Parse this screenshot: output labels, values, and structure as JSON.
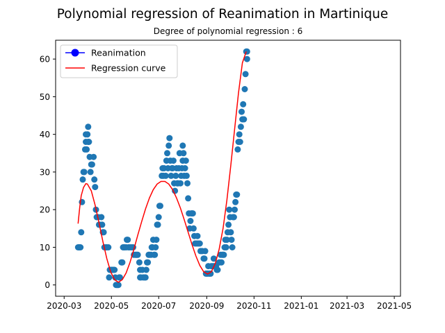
{
  "chart_data": {
    "type": "scatter",
    "title": "Polynomial regression of Reanimation in Martinique",
    "subtitle": "Degree of polynomial regression : 6",
    "xlabel": "",
    "ylabel": "",
    "x_axis": {
      "start": "2020-03-01",
      "min_day": -11,
      "max_day": 434,
      "tick_labels": [
        "2020-03",
        "2020-05",
        "2020-07",
        "2020-09",
        "2020-11",
        "2021-01",
        "2021-03",
        "2021-05"
      ],
      "tick_days": [
        0,
        61,
        122,
        184,
        245,
        306,
        365,
        426
      ]
    },
    "y_axis": {
      "range": [
        -3,
        65
      ],
      "tick_labels": [
        "0",
        "10",
        "20",
        "30",
        "40",
        "50",
        "60"
      ],
      "tick_values": [
        0,
        10,
        20,
        30,
        40,
        50,
        60
      ]
    },
    "legend": {
      "position": "upper-left",
      "entries": [
        "Reanimation",
        "Regression curve"
      ]
    },
    "colors": {
      "scatter": "#1f77b4",
      "curve": "#ff0000"
    },
    "series": [
      {
        "name": "Reanimation",
        "kind": "scatter",
        "points": [
          [
            18,
            10
          ],
          [
            19,
            10
          ],
          [
            20,
            10
          ],
          [
            21,
            10
          ],
          [
            22,
            14
          ],
          [
            23,
            22
          ],
          [
            24,
            28
          ],
          [
            25,
            30
          ],
          [
            26,
            30
          ],
          [
            27,
            36
          ],
          [
            28,
            38
          ],
          [
            28,
            40
          ],
          [
            29,
            36
          ],
          [
            30,
            40
          ],
          [
            31,
            42
          ],
          [
            31,
            38
          ],
          [
            32,
            38
          ],
          [
            33,
            34
          ],
          [
            34,
            30
          ],
          [
            35,
            32
          ],
          [
            36,
            32
          ],
          [
            38,
            34
          ],
          [
            39,
            28
          ],
          [
            40,
            26
          ],
          [
            41,
            20
          ],
          [
            42,
            18
          ],
          [
            44,
            18
          ],
          [
            45,
            16
          ],
          [
            46,
            16
          ],
          [
            48,
            18
          ],
          [
            49,
            16
          ],
          [
            50,
            14
          ],
          [
            51,
            14
          ],
          [
            52,
            10
          ],
          [
            54,
            10
          ],
          [
            55,
            10
          ],
          [
            57,
            10
          ],
          [
            58,
            2
          ],
          [
            59,
            4
          ],
          [
            60,
            4
          ],
          [
            61,
            4
          ],
          [
            62,
            4
          ],
          [
            63,
            4
          ],
          [
            64,
            4
          ],
          [
            65,
            4
          ],
          [
            66,
            2
          ],
          [
            67,
            0
          ],
          [
            68,
            0
          ],
          [
            69,
            0
          ],
          [
            70,
            0
          ],
          [
            71,
            2
          ],
          [
            72,
            2
          ],
          [
            74,
            6
          ],
          [
            75,
            6
          ],
          [
            76,
            10
          ],
          [
            77,
            10
          ],
          [
            78,
            10
          ],
          [
            80,
            10
          ],
          [
            81,
            12
          ],
          [
            82,
            12
          ],
          [
            83,
            10
          ],
          [
            85,
            10
          ],
          [
            87,
            10
          ],
          [
            89,
            10
          ],
          [
            90,
            8
          ],
          [
            92,
            8
          ],
          [
            93,
            8
          ],
          [
            94,
            8
          ],
          [
            95,
            8
          ],
          [
            97,
            6
          ],
          [
            98,
            4
          ],
          [
            98,
            2
          ],
          [
            99,
            2
          ],
          [
            101,
            4
          ],
          [
            102,
            2
          ],
          [
            104,
            2
          ],
          [
            105,
            2
          ],
          [
            106,
            4
          ],
          [
            107,
            6
          ],
          [
            108,
            6
          ],
          [
            109,
            8
          ],
          [
            110,
            8
          ],
          [
            112,
            8
          ],
          [
            113,
            10
          ],
          [
            114,
            10
          ],
          [
            115,
            12
          ],
          [
            116,
            8
          ],
          [
            117,
            8
          ],
          [
            118,
            10
          ],
          [
            119,
            12
          ],
          [
            120,
            16
          ],
          [
            121,
            16
          ],
          [
            122,
            18
          ],
          [
            123,
            21
          ],
          [
            124,
            21
          ],
          [
            126,
            29
          ],
          [
            127,
            31
          ],
          [
            128,
            29
          ],
          [
            129,
            31
          ],
          [
            131,
            29
          ],
          [
            132,
            33
          ],
          [
            133,
            35
          ],
          [
            134,
            31
          ],
          [
            135,
            37
          ],
          [
            136,
            39
          ],
          [
            137,
            33
          ],
          [
            138,
            29
          ],
          [
            139,
            31
          ],
          [
            140,
            31
          ],
          [
            141,
            33
          ],
          [
            142,
            27
          ],
          [
            143,
            25
          ],
          [
            144,
            29
          ],
          [
            145,
            31
          ],
          [
            146,
            27
          ],
          [
            147,
            27
          ],
          [
            148,
            31
          ],
          [
            149,
            35
          ],
          [
            150,
            27
          ],
          [
            151,
            29
          ],
          [
            152,
            31
          ],
          [
            153,
            37
          ],
          [
            153,
            33
          ],
          [
            154,
            35
          ],
          [
            155,
            29
          ],
          [
            156,
            31
          ],
          [
            157,
            33
          ],
          [
            158,
            29
          ],
          [
            159,
            27
          ],
          [
            160,
            23
          ],
          [
            161,
            19
          ],
          [
            162,
            15
          ],
          [
            163,
            17
          ],
          [
            164,
            19
          ],
          [
            165,
            19
          ],
          [
            166,
            19
          ],
          [
            167,
            15
          ],
          [
            168,
            13
          ],
          [
            169,
            11
          ],
          [
            171,
            11
          ],
          [
            172,
            13
          ],
          [
            173,
            11
          ],
          [
            175,
            11
          ],
          [
            176,
            9
          ],
          [
            178,
            9
          ],
          [
            180,
            7
          ],
          [
            181,
            7
          ],
          [
            182,
            9
          ],
          [
            183,
            3
          ],
          [
            184,
            3
          ],
          [
            185,
            3
          ],
          [
            186,
            5
          ],
          [
            187,
            3
          ],
          [
            188,
            3
          ],
          [
            189,
            3
          ],
          [
            190,
            5
          ],
          [
            192,
            5
          ],
          [
            193,
            7
          ],
          [
            194,
            5
          ],
          [
            196,
            5
          ],
          [
            197,
            4
          ],
          [
            198,
            4
          ],
          [
            200,
            6
          ],
          [
            201,
            6
          ],
          [
            202,
            8
          ],
          [
            203,
            6
          ],
          [
            204,
            8
          ],
          [
            205,
            8
          ],
          [
            206,
            8
          ],
          [
            207,
            10
          ],
          [
            208,
            12
          ],
          [
            209,
            10
          ],
          [
            210,
            12
          ],
          [
            211,
            14
          ],
          [
            212,
            16
          ],
          [
            213,
            20
          ],
          [
            214,
            18
          ],
          [
            215,
            14
          ],
          [
            216,
            12
          ],
          [
            217,
            10
          ],
          [
            218,
            18
          ],
          [
            219,
            18
          ],
          [
            220,
            20
          ],
          [
            221,
            22
          ],
          [
            222,
            24
          ],
          [
            223,
            24
          ],
          [
            224,
            36
          ],
          [
            225,
            38
          ],
          [
            226,
            40
          ],
          [
            227,
            38
          ],
          [
            228,
            42
          ],
          [
            229,
            46
          ],
          [
            230,
            44
          ],
          [
            231,
            48
          ],
          [
            232,
            44
          ],
          [
            233,
            52
          ],
          [
            234,
            56
          ],
          [
            235,
            62
          ],
          [
            236,
            60
          ],
          [
            236,
            62
          ]
        ]
      },
      {
        "name": "Regression curve",
        "kind": "line",
        "points": [
          [
            18,
            16.3
          ],
          [
            20,
            20.5
          ],
          [
            22,
            23.7
          ],
          [
            25,
            25.9
          ],
          [
            28,
            26.9
          ],
          [
            30,
            26.8
          ],
          [
            35,
            25.0
          ],
          [
            40,
            21.2
          ],
          [
            45,
            16.5
          ],
          [
            50,
            11.5
          ],
          [
            55,
            7.0
          ],
          [
            60,
            3.5
          ],
          [
            65,
            1.4
          ],
          [
            70,
            0.7
          ],
          [
            75,
            1.4
          ],
          [
            80,
            3.2
          ],
          [
            85,
            6.0
          ],
          [
            90,
            9.5
          ],
          [
            95,
            13.2
          ],
          [
            100,
            16.8
          ],
          [
            105,
            20.2
          ],
          [
            110,
            23.1
          ],
          [
            115,
            25.3
          ],
          [
            120,
            26.8
          ],
          [
            125,
            27.5
          ],
          [
            130,
            27.5
          ],
          [
            135,
            26.8
          ],
          [
            140,
            25.3
          ],
          [
            145,
            23.1
          ],
          [
            150,
            20.4
          ],
          [
            155,
            17.3
          ],
          [
            160,
            14.0
          ],
          [
            165,
            10.7
          ],
          [
            170,
            7.7
          ],
          [
            175,
            5.2
          ],
          [
            180,
            3.5
          ],
          [
            185,
            2.9
          ],
          [
            190,
            3.5
          ],
          [
            195,
            5.7
          ],
          [
            200,
            9.5
          ],
          [
            205,
            15.0
          ],
          [
            210,
            22.5
          ],
          [
            215,
            31.7
          ],
          [
            220,
            41.5
          ],
          [
            225,
            51.0
          ],
          [
            230,
            59.0
          ],
          [
            235,
            62.0
          ]
        ]
      }
    ]
  }
}
